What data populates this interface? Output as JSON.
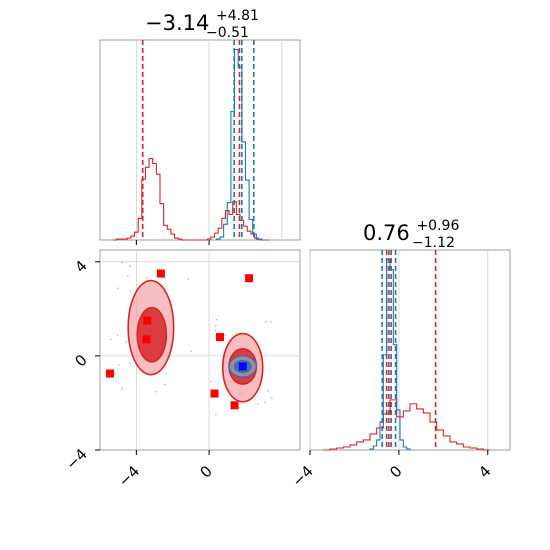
{
  "chart_data": [
    {
      "type": "histogram",
      "panel": "top-left marginal (x1)",
      "title": {
        "base": "−3.14",
        "sup": "+4.81",
        "sub": "−0.51"
      },
      "xlim": [
        -6,
        5
      ],
      "grid": true,
      "series": [
        {
          "color": "#d62728",
          "quantiles": [
            -3.65,
            1.67
          ],
          "bin_edges": [
            -5.3,
            -5.1,
            -4.9,
            -4.7,
            -4.5,
            -4.3,
            -4.1,
            -3.9,
            -3.7,
            -3.5,
            -3.3,
            -3.1,
            -2.9,
            -2.7,
            -2.5,
            -2.3,
            -2.1,
            -1.9,
            -1.7,
            -1.5,
            -1.3,
            -1.1,
            -0.9,
            -0.7,
            -0.5,
            -0.3,
            -0.1,
            0.1,
            0.3,
            0.5,
            0.7,
            0.9,
            1.1,
            1.3,
            1.5,
            1.7,
            1.9,
            2.1,
            2.3,
            2.5,
            2.7,
            2.9,
            3.1,
            3.3
          ],
          "counts": [
            0,
            1,
            1,
            1,
            2,
            4,
            8,
            22,
            62,
            74,
            83,
            78,
            67,
            37,
            15,
            11,
            6,
            2,
            1,
            0,
            0,
            0,
            0,
            0,
            0,
            0,
            1,
            3,
            7,
            12,
            22,
            30,
            26,
            39,
            26,
            20,
            14,
            9,
            6,
            2,
            1,
            0,
            0
          ]
        },
        {
          "color": "#1f77b4",
          "quantiles": [
            1.38,
            1.8,
            2.46
          ],
          "bin_edges": [
            0.4,
            0.6,
            0.8,
            1.0,
            1.2,
            1.4,
            1.6,
            1.8,
            2.0,
            2.2,
            2.4,
            2.6,
            2.8,
            3.0
          ],
          "counts": [
            1,
            3,
            16,
            38,
            131,
            194,
            176,
            100,
            61,
            21,
            6,
            1,
            0
          ]
        }
      ]
    },
    {
      "type": "scatter",
      "panel": "bottom-left 2D (x1 vs x2)",
      "xlim": [
        -6,
        5
      ],
      "ylim": [
        -4,
        4.5
      ],
      "xticks": [
        "−4",
        "0"
      ],
      "yticks": [
        "−4",
        "0",
        "4"
      ],
      "grid": true,
      "red_points": [
        [
          -2.65,
          3.5
        ],
        [
          -3.4,
          1.5
        ],
        [
          -3.45,
          0.7
        ],
        [
          -5.45,
          -0.75
        ],
        [
          0.6,
          0.8
        ],
        [
          2.2,
          3.3
        ],
        [
          0.3,
          -1.6
        ],
        [
          1.4,
          -2.1
        ]
      ],
      "blue_points": [
        [
          1.85,
          -0.45
        ]
      ],
      "red_contours": [
        {
          "level": "outer",
          "cx": -3.2,
          "cy": 1.2,
          "rx": 1.25,
          "ry": 2.0
        },
        {
          "level": "inner",
          "cx": -3.15,
          "cy": 0.9,
          "rx": 0.8,
          "ry": 1.15
        },
        {
          "level": "outer",
          "cx": 1.85,
          "cy": -0.5,
          "rx": 1.1,
          "ry": 1.45
        },
        {
          "level": "inner",
          "cx": 1.85,
          "cy": -0.45,
          "rx": 0.75,
          "ry": 0.75
        }
      ],
      "blue_contours": [
        {
          "level": "outer",
          "cx": 1.85,
          "cy": -0.45,
          "rx": 0.75,
          "ry": 0.45
        },
        {
          "level": "inner",
          "cx": 1.85,
          "cy": -0.45,
          "rx": 0.45,
          "ry": 0.25
        }
      ]
    },
    {
      "type": "histogram",
      "panel": "bottom-right marginal (x2)",
      "title": {
        "base": "0.76",
        "sup": "+0.96",
        "sub": "−1.12"
      },
      "xlim": [
        -4,
        5
      ],
      "xticks": [
        "−4",
        "0",
        "4"
      ],
      "grid": true,
      "series": [
        {
          "color": "#d62728",
          "quantiles": [
            -0.55,
            -0.35,
            1.65
          ],
          "bin_edges": [
            -3.4,
            -3.1,
            -2.8,
            -2.5,
            -2.2,
            -1.9,
            -1.6,
            -1.3,
            -1.0,
            -0.7,
            -0.4,
            -0.1,
            0.2,
            0.5,
            0.8,
            1.1,
            1.4,
            1.7,
            2.0,
            2.3,
            2.6,
            2.9,
            3.2,
            3.5,
            3.8,
            4.1
          ],
          "counts": [
            0,
            1,
            2,
            3,
            5,
            8,
            10,
            16,
            22,
            36,
            50,
            33,
            39,
            46,
            41,
            37,
            28,
            20,
            14,
            8,
            6,
            3,
            2,
            1,
            0
          ]
        },
        {
          "color": "#1f77b4",
          "quantiles": [
            -0.75,
            -0.45,
            -0.15
          ],
          "bin_edges": [
            -1.3,
            -1.15,
            -1.0,
            -0.85,
            -0.7,
            -0.55,
            -0.4,
            -0.25,
            -0.1,
            0.05,
            0.2,
            0.35,
            0.5
          ],
          "counts": [
            1,
            4,
            10,
            28,
            95,
            190,
            180,
            105,
            40,
            10,
            3,
            1
          ]
        }
      ]
    }
  ]
}
